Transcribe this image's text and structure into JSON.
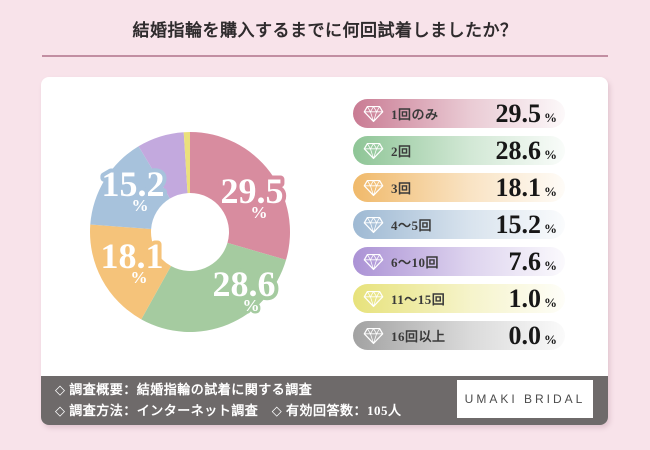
{
  "page": {
    "title": "結婚指輪を購入するまでに何回試着しましたか？",
    "background_color": "#f8e3ea",
    "divider_color": "#c28ea2"
  },
  "chart_data": {
    "type": "pie",
    "subtype": "donut",
    "title": "結婚指輪を購入するまでに何回試着しましたか？",
    "start_angle_deg": -90,
    "direction": "clockwise",
    "unit": "%",
    "legend_position": "right",
    "segments": [
      {
        "label": "1回のみ",
        "value": 29.5,
        "display": "29.5",
        "color": "#d88c9f",
        "legend_gradient_start": "#c97b93",
        "show_label_on_donut": true
      },
      {
        "label": "2回",
        "value": 28.6,
        "display": "28.6",
        "color": "#a5cba0",
        "legend_gradient_start": "#8ec596",
        "show_label_on_donut": true
      },
      {
        "label": "3回",
        "value": 18.1,
        "display": "18.1",
        "color": "#f5c37a",
        "legend_gradient_start": "#f0b96a",
        "show_label_on_donut": true
      },
      {
        "label": "4〜5回",
        "value": 15.2,
        "display": "15.2",
        "color": "#a7c2dc",
        "legend_gradient_start": "#9eb9d3",
        "show_label_on_donut": true
      },
      {
        "label": "6〜10回",
        "value": 7.6,
        "display": "7.6",
        "color": "#c3a9de",
        "legend_gradient_start": "#ab92d5",
        "show_label_on_donut": false
      },
      {
        "label": "11〜15回",
        "value": 1.0,
        "display": "1.0",
        "color": "#ebe07c",
        "legend_gradient_start": "#e7e27b",
        "show_label_on_donut": false
      },
      {
        "label": "16回以上",
        "value": 0.0,
        "display": "0.0",
        "color": "#b9b9b9",
        "legend_gradient_start": "#a2a2a2",
        "show_label_on_donut": false
      }
    ]
  },
  "footer": {
    "line1": "◇ 調査概要：結婚指輪の試着に関する調査",
    "line2": "◇ 調査方法：インターネット調査　◇ 有効回答数：105人",
    "background_color": "#6e6a6a",
    "logo": "UMAKI BRIDAL"
  }
}
